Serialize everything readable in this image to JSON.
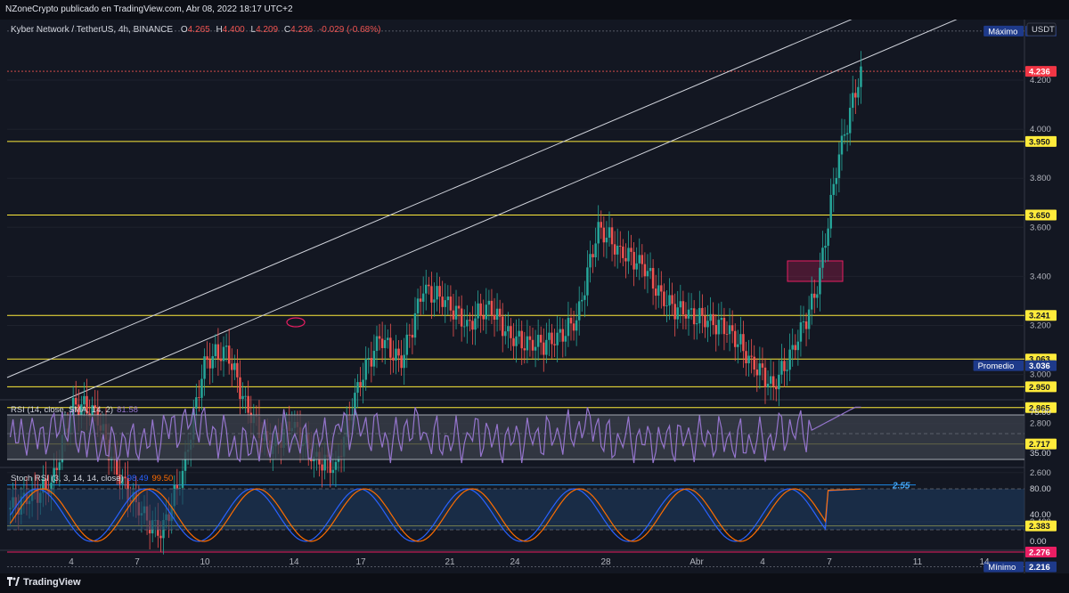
{
  "header": {
    "published": "NZoneCrypto publicado en TradingView.com, Abr 08, 2022 18:17 UTC+2"
  },
  "footer": {
    "brand": "TradingView"
  },
  "legend": {
    "symbol": "Kyber Network / TetherUS, 4h, BINANCE",
    "o_label": "O",
    "o": "4.265",
    "h_label": "H",
    "h": "4.400",
    "l_label": "L",
    "l": "4.209",
    "c_label": "C",
    "c": "4.236",
    "change": "-0.029 (-0.68%)"
  },
  "price_axis": {
    "currency": "USDT",
    "ticks": [
      "4.200",
      "4.000",
      "3.800",
      "3.600",
      "3.400",
      "3.200",
      "3.000",
      "2.800",
      "2.600",
      "2.400"
    ],
    "badges": [
      {
        "name": "max",
        "label": "Máximo",
        "value": "4.400",
        "price": 4.4,
        "bg": "#1e3a8a",
        "fg": "#ffffff"
      },
      {
        "name": "last",
        "label": "",
        "value": "4.236",
        "price": 4.236,
        "bg": "#f23645",
        "fg": "#ffffff"
      },
      {
        "name": "level-3950",
        "label": "",
        "value": "3.950",
        "price": 3.95,
        "bg": "#ffeb3b",
        "fg": "#131722"
      },
      {
        "name": "level-3650",
        "label": "",
        "value": "3.650",
        "price": 3.65,
        "bg": "#ffeb3b",
        "fg": "#131722"
      },
      {
        "name": "level-3241",
        "label": "",
        "value": "3.241",
        "price": 3.241,
        "bg": "#ffeb3b",
        "fg": "#131722"
      },
      {
        "name": "level-3063",
        "label": "",
        "value": "3.063",
        "price": 3.063,
        "bg": "#ffeb3b",
        "fg": "#131722"
      },
      {
        "name": "avg",
        "label": "Promedio",
        "value": "3.036",
        "price": 3.036,
        "bg": "#1e3a8a",
        "fg": "#ffffff"
      },
      {
        "name": "level-2950",
        "label": "",
        "value": "2.950",
        "price": 2.95,
        "bg": "#ffeb3b",
        "fg": "#131722"
      },
      {
        "name": "level-2865",
        "label": "",
        "value": "2.865",
        "price": 2.865,
        "bg": "#ffeb3b",
        "fg": "#131722"
      },
      {
        "name": "level-2717",
        "label": "",
        "value": "2.717",
        "price": 2.717,
        "bg": "#ffeb3b",
        "fg": "#131722"
      },
      {
        "name": "level-2383",
        "label": "",
        "value": "2.383",
        "price": 2.383,
        "bg": "#ffeb3b",
        "fg": "#131722"
      },
      {
        "name": "level-2276",
        "label": "",
        "value": "2.276",
        "price": 2.276,
        "bg": "#e91e63",
        "fg": "#ffffff"
      },
      {
        "name": "min",
        "label": "Mínimo",
        "value": "2.216",
        "price": 2.216,
        "bg": "#1e3a8a",
        "fg": "#ffffff"
      }
    ]
  },
  "time_axis": {
    "labels": [
      "4",
      "7",
      "10",
      "14",
      "17",
      "21",
      "24",
      "28",
      "Abr",
      "4",
      "7",
      "11",
      "14"
    ]
  },
  "rsi": {
    "label": "RSI (14, close, SMA, 14, 2)",
    "value": "81.58",
    "ticks": [
      "75.00",
      "35.00"
    ]
  },
  "stoch": {
    "label": "Stoch RSI (3, 3, 14, 14, close)",
    "k": "98.49",
    "d": "99.50",
    "ticks": [
      "80.00",
      "40.00",
      "0.00"
    ]
  },
  "colors": {
    "up": "#26a69a",
    "down": "#ef5350",
    "level": "#ffeb3b",
    "support": "#1e88e5",
    "magenta": "#e91e63",
    "rsi": "#9575cd",
    "stoch_k": "#2962ff",
    "stoch_d": "#ff6d00"
  },
  "chart_data": {
    "type": "line",
    "title": "Kyber Network / TetherUS, 4h, BINANCE",
    "y_unit": "USDT",
    "x_labels": [
      "4",
      "7",
      "10",
      "14",
      "17",
      "21",
      "24",
      "28",
      "Abr",
      "4",
      "7",
      "11",
      "14"
    ],
    "ylim": [
      2.1,
      4.6
    ],
    "close_series": [
      {
        "label": "",
        "close": 2.5
      },
      {
        "label": "4",
        "close": 2.55
      },
      {
        "label": "",
        "close": 2.88
      },
      {
        "label": "",
        "close": 2.85
      },
      {
        "label": "",
        "close": 2.6
      },
      {
        "label": "",
        "close": 2.45
      },
      {
        "label": "7",
        "close": 2.35
      },
      {
        "label": "",
        "close": 2.6
      },
      {
        "label": "",
        "close": 3.05
      },
      {
        "label": "10",
        "close": 3.1
      },
      {
        "label": "",
        "close": 2.85
      },
      {
        "label": "",
        "close": 2.7
      },
      {
        "label": "",
        "close": 2.8
      },
      {
        "label": "",
        "close": 2.66
      },
      {
        "label": "14",
        "close": 2.62
      },
      {
        "label": "",
        "close": 2.95
      },
      {
        "label": "",
        "close": 3.15
      },
      {
        "label": "17",
        "close": 3.05
      },
      {
        "label": "",
        "close": 3.35
      },
      {
        "label": "",
        "close": 3.3
      },
      {
        "label": "21",
        "close": 3.2
      },
      {
        "label": "",
        "close": 3.28
      },
      {
        "label": "24",
        "close": 3.15
      },
      {
        "label": "",
        "close": 3.12
      },
      {
        "label": "",
        "close": 3.14
      },
      {
        "label": "",
        "close": 3.22
      },
      {
        "label": "28",
        "close": 3.6
      },
      {
        "label": "",
        "close": 3.5
      },
      {
        "label": "",
        "close": 3.45
      },
      {
        "label": "Abr",
        "close": 3.3
      },
      {
        "label": "",
        "close": 3.25
      },
      {
        "label": "",
        "close": 3.22
      },
      {
        "label": "4",
        "close": 3.18
      },
      {
        "label": "",
        "close": 3.05
      },
      {
        "label": "",
        "close": 2.95
      },
      {
        "label": "7",
        "close": 3.12
      },
      {
        "label": "",
        "close": 3.35
      },
      {
        "label": "",
        "close": 3.9
      },
      {
        "label": "",
        "close": 4.236
      }
    ],
    "horizontal_levels": [
      3.95,
      3.65,
      3.241,
      3.063,
      2.95,
      2.865,
      2.717,
      2.383,
      2.276
    ],
    "support_line": {
      "label": "2.55",
      "value": 2.55
    },
    "high": 4.4,
    "low": 2.216,
    "average": 3.036,
    "last": 4.236,
    "rsi_ticks": [
      75,
      35
    ],
    "rsi_last": 81.58,
    "stoch_ticks": [
      80,
      40,
      0
    ],
    "stoch_k_last": 98.49,
    "stoch_d_last": 99.5
  }
}
